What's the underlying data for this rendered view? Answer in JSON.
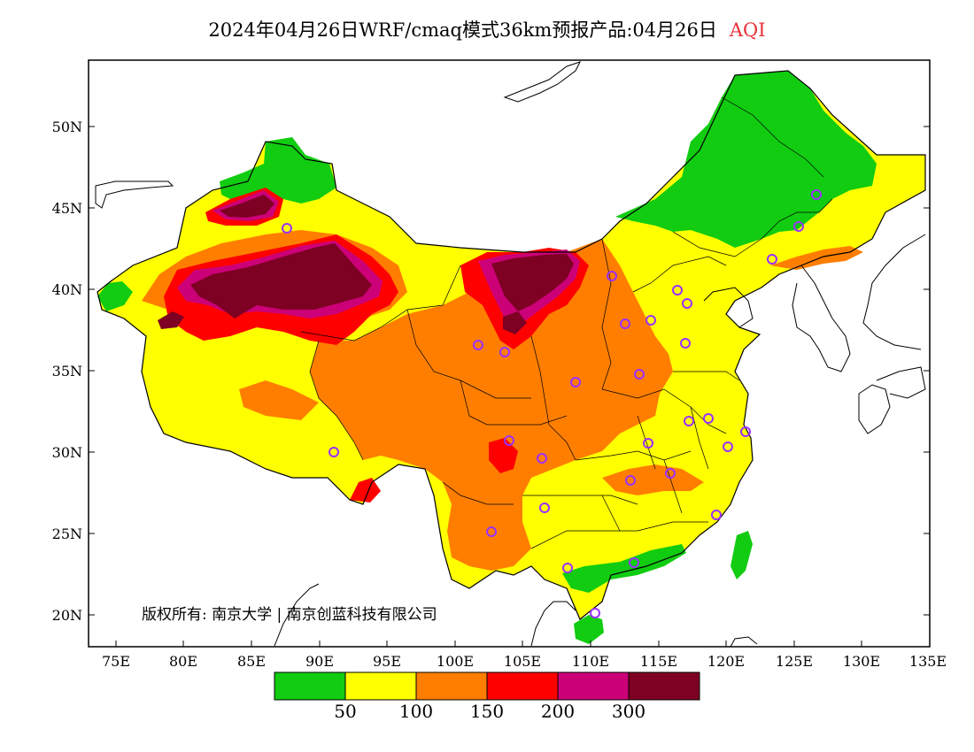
{
  "title": {
    "main": "2024年04月26日WRF/cmaq模式36km预报产品:04月26日",
    "variable": "AQI"
  },
  "axes": {
    "lat_labels": [
      "50N",
      "45N",
      "40N",
      "35N",
      "30N",
      "25N",
      "20N"
    ],
    "lon_labels": [
      "75E",
      "80E",
      "85E",
      "90E",
      "95E",
      "100E",
      "105E",
      "110E",
      "115E",
      "120E",
      "125E",
      "130E",
      "135E"
    ],
    "lon_range": [
      73,
      135
    ],
    "lat_range": [
      18,
      54
    ]
  },
  "copyright": "版权所有: 南京大学 | 南京创蓝科技有限公司",
  "legend": {
    "colors": [
      "#11cc11",
      "#ffff00",
      "#ff7e00",
      "#ff0000",
      "#cc0077",
      "#7e0023"
    ],
    "tick_labels": [
      "50",
      "100",
      "150",
      "200",
      "300"
    ]
  },
  "colors": {
    "green": "#11cc11",
    "yellow": "#ffff00",
    "orange": "#ff7e00",
    "red": "#ff0000",
    "purple": "#cc0077",
    "maroon": "#7e0023",
    "station_marker": "#9b30ff"
  }
}
